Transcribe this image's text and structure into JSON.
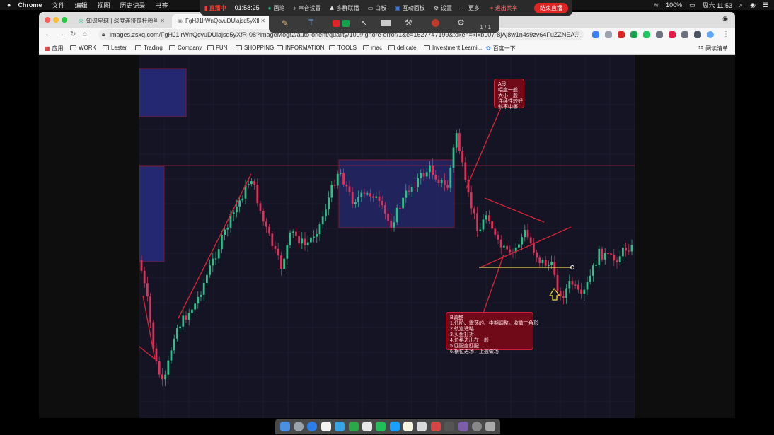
{
  "menubar": {
    "app": "Chrome",
    "items": [
      "文件",
      "编辑",
      "视图",
      "历史记录",
      "书签"
    ],
    "battery": "100%",
    "clock": "周六 11:53"
  },
  "livebar": {
    "status": "直播中",
    "timer": "01:58:25",
    "items": [
      "画笔",
      "声音设置",
      "多群联播",
      "白板",
      "互动面板",
      "设置",
      "更多",
      "退出共享"
    ],
    "end_button": "结束直播",
    "page_indicator": "1 / 1"
  },
  "tabs": [
    {
      "title": "知识星球 | 深度连接铁杆粉丝、",
      "active": false
    },
    {
      "title": "FgHJ1lrWnQcvuDUlajsd5yXfR-",
      "active": true
    }
  ],
  "omnibox": {
    "url": "images.zsxq.com/FgHJ1lrWnQcvuDUlajsd5yXfR-08?imageMogr2/auto-orient/quality/100!/ignore-error/1&e=1627747199&token=kIxbL07-8jAj8w1n4s9zv64FuZZNEA..."
  },
  "bookmarks": [
    "应用",
    "WORK",
    "Lester",
    "Trading",
    "Company",
    "FUN",
    "SHOPPING",
    "INFORMATION",
    "TOOLS",
    "mac",
    "delicate",
    "Investment Learni...",
    "百度一下"
  ],
  "reading_list": "阅读清单",
  "notes": {
    "a": [
      "A段",
      "幅度一般",
      "大小一般",
      "连续性较好",
      "斜率中等"
    ],
    "b": [
      "B调整",
      "1.低阶、震荡的、中期调整。收敛三角形",
      "2.轨道适略",
      "3.买盘打折",
      "4.价格进出在一般",
      "5.匹配度匹配",
      "6.横位进场，止盈做场"
    ]
  },
  "colors": {
    "bull": "#2fbf8a",
    "bear": "#e0305a",
    "overlay": "#2a2f8a",
    "trend": "#d42438",
    "support": "#e8d84a"
  }
}
